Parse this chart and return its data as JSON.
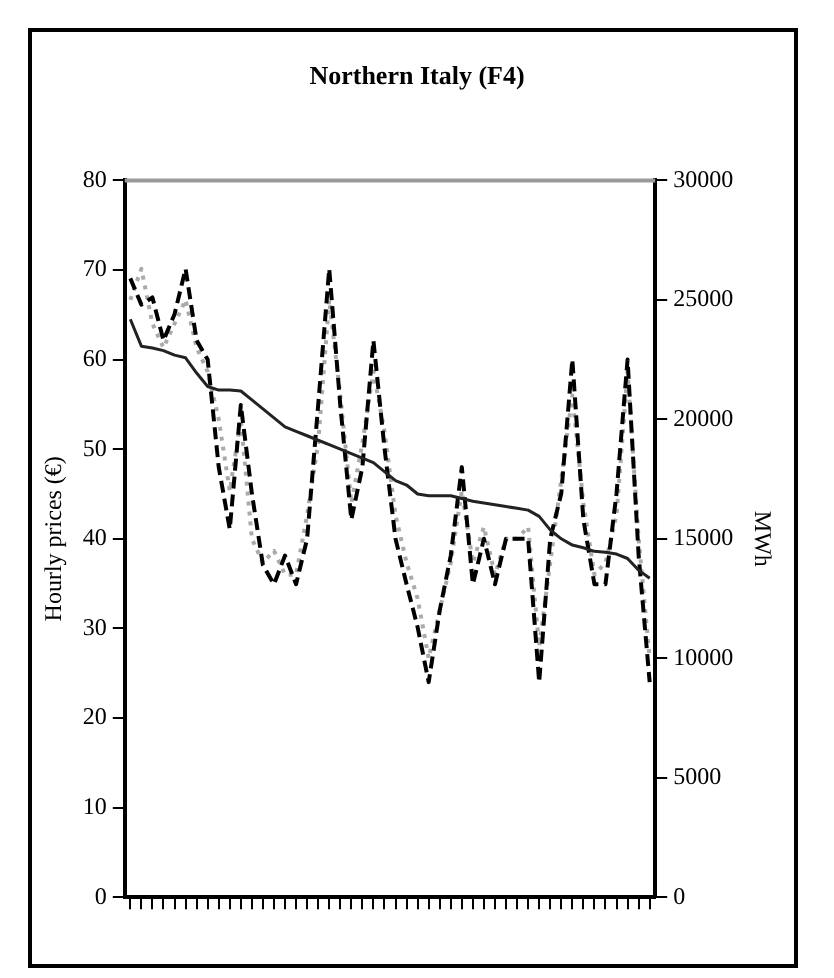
{
  "chart_data": {
    "type": "line",
    "title": "Northern Italy (F4)",
    "ylabel": "Hourly prices (€)",
    "y2label": "MWh",
    "categories": [
      null,
      null,
      null,
      null,
      null,
      null,
      null,
      null,
      null,
      null,
      null,
      null,
      null,
      null,
      null,
      null,
      null,
      null,
      null,
      null,
      null,
      null,
      null,
      null,
      null,
      null,
      null,
      null,
      null,
      null,
      null,
      null,
      null,
      null,
      null,
      null,
      null,
      null,
      null,
      null,
      null,
      null,
      null,
      null,
      null,
      null,
      null,
      null
    ],
    "series": [
      {
        "color": "#222222",
        "line_style": "solid",
        "values": [
          64.5,
          61.5,
          61.3,
          61.0,
          60.5,
          60.2,
          58.5,
          57,
          56.6,
          56.6,
          56.5,
          55.5,
          54.5,
          53.5,
          52.5,
          52,
          51.5,
          51,
          50.5,
          50,
          49.5,
          49,
          48.5,
          47.5,
          46.5,
          46,
          45,
          44.8,
          44.8,
          44.8,
          44.5,
          44.2,
          44,
          43.8,
          43.6,
          43.4,
          43.2,
          42.5,
          41,
          40,
          39.3,
          39,
          38.6,
          38.5,
          38.3,
          37.8,
          36.5,
          35.6
        ]
      },
      {
        "color": "#000000",
        "line_style": "dashed",
        "axis": "y2",
        "values": [
          25900,
          24800,
          25100,
          23300,
          24400,
          26300,
          23300,
          22500,
          18000,
          15400,
          20600,
          16900,
          13900,
          13100,
          14300,
          13100,
          15000,
          20600,
          26300,
          20600,
          15800,
          18000,
          23300,
          18800,
          15000,
          13100,
          11300,
          9000,
          12000,
          14300,
          18000,
          13100,
          15000,
          13100,
          15000,
          15000,
          15000,
          9000,
          15000,
          16900,
          22500,
          15800,
          13100,
          13100,
          16900,
          22500,
          14300,
          9000
        ]
      },
      {
        "color": "#aaaaaa",
        "line_style": "dotted",
        "axis": "y2",
        "values": [
          25000,
          26300,
          24000,
          23000,
          24000,
          25000,
          23000,
          22000,
          20000,
          17000,
          20000,
          15000,
          14000,
          14500,
          13500,
          13500,
          16000,
          19000,
          25000,
          21000,
          16500,
          19000,
          22000,
          19500,
          16000,
          14000,
          12500,
          10000,
          12000,
          14000,
          17000,
          14000,
          15500,
          13500,
          15000,
          15000,
          15500,
          10500,
          14000,
          17500,
          21000,
          16500,
          13500,
          14000,
          16000,
          22000,
          15000,
          10000
        ]
      }
    ],
    "ylim": [
      0,
      80
    ],
    "yticks": [
      0,
      10,
      20,
      30,
      40,
      50,
      60,
      70,
      80
    ],
    "y2lim": [
      0,
      30000
    ],
    "y2ticks": [
      0,
      5000,
      10000,
      15000,
      20000,
      25000,
      30000
    ],
    "grid": false,
    "legend": false,
    "marker": "none"
  }
}
